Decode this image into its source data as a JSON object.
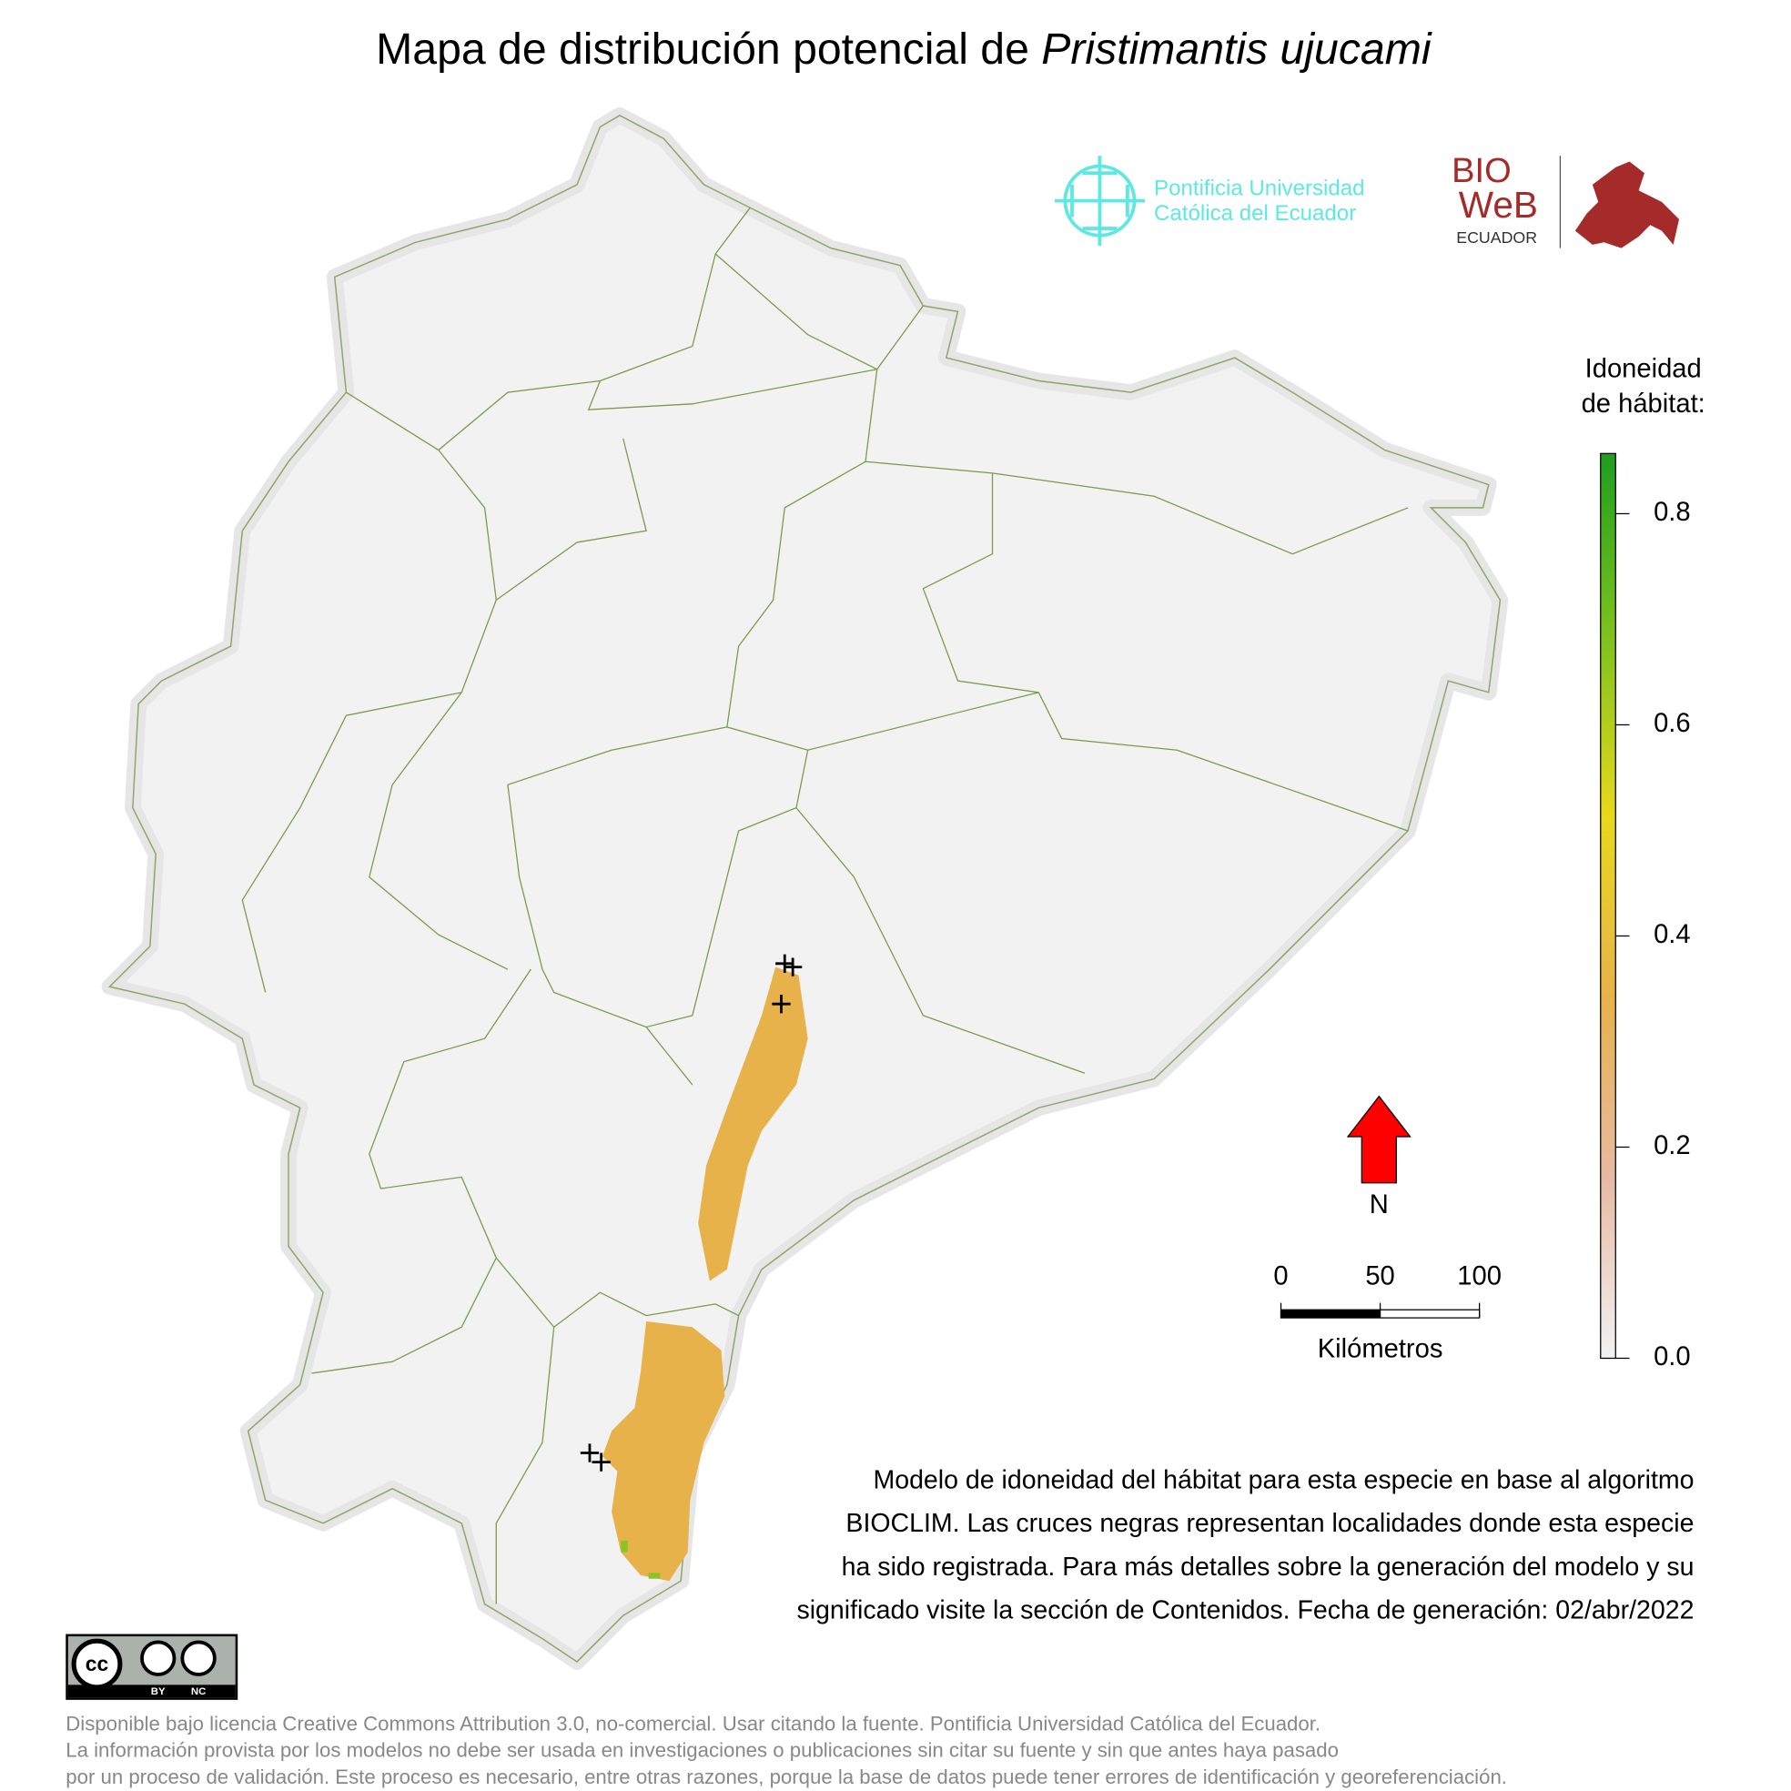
{
  "header": {
    "title": "Mapa de distribución potencial de ",
    "species": "Pristimantis ujucami"
  },
  "logos": {
    "puce": [
      "Pontificia Universidad",
      "Católica del Ecuador"
    ],
    "bioweb": [
      "BIO",
      "WeB",
      "ECUADOR"
    ]
  },
  "legend": {
    "title": [
      "Idoneidad",
      "de hábitat:"
    ],
    "limits": [
      0,
      0.857
    ],
    "ticks": [
      {
        "value": 0,
        "label": "0.0"
      },
      0.2,
      0.4,
      0.6,
      0.8
    ],
    "colors": [
      "#f2f2f2",
      "#e8b9a2",
      "#e8b24a",
      "#e8d81c",
      "#7cc21e",
      "#1e9e1e"
    ]
  },
  "north": "N",
  "scale_bar": {
    "ticks": [
      0,
      50,
      100
    ],
    "unit": "Kilómetros"
  },
  "description": [
    "Modelo de idoneidad del hábitat para esta especie en base al algoritmo",
    "BIOCLIM. Las cruces negras representan localidades donde esta especie",
    "ha sido registrada. Para más detalles sobre la generación del modelo y su",
    "significado visite la sección de Contenidos. Fecha de generación: 02/abr/2022"
  ],
  "license_badge": [
    "cc",
    "BY",
    "NC"
  ],
  "license": [
    "Disponible bajo licencia Creative Commons Attribution 3.0, no-comercial. Usar citando la fuente. Pontificia Universidad Católica del Ecuador.",
    "La información provista por los modelos no debe ser usada en investigaciones o publicaciones sin citar su fuente y sin que antes haya pasado",
    "por un proceso de validación. Este proceso es necesario, entre otras razones, porque la base de datos puede tener errores de identificación y georeferenciación."
  ]
}
